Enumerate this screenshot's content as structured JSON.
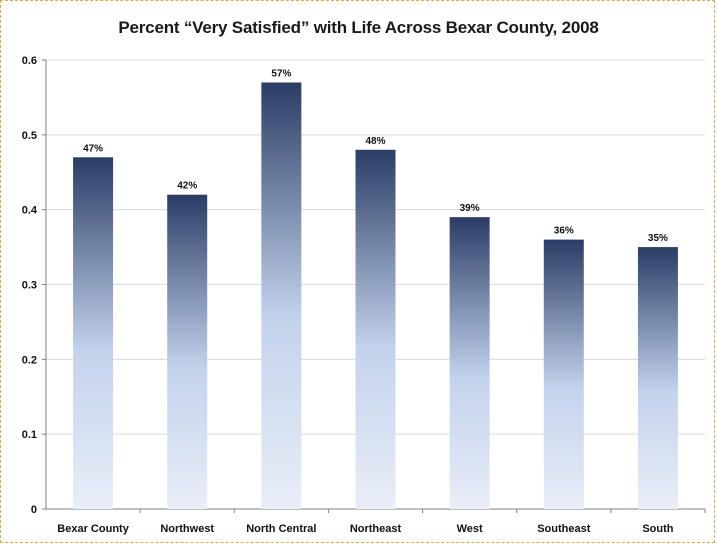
{
  "chart_data": {
    "type": "bar",
    "title": "Percent “Very Satisfied” with Life Across Bexar County, 2008",
    "xlabel": "",
    "ylabel": "",
    "categories": [
      "Bexar County",
      "Northwest",
      "North Central",
      "Northeast",
      "West",
      "Southeast",
      "South"
    ],
    "values": [
      0.47,
      0.42,
      0.57,
      0.48,
      0.39,
      0.36,
      0.35
    ],
    "data_labels": [
      "47%",
      "42%",
      "57%",
      "48%",
      "39%",
      "36%",
      "35%"
    ],
    "ylim": [
      0,
      0.6
    ],
    "yticks": [
      "0",
      "0.1",
      "0.2",
      "0.3",
      "0.4",
      "0.5",
      "0.6"
    ],
    "grid": true,
    "legend": "none",
    "colors": {
      "bar_top": "#2b3d66",
      "bar_mid": "#c3d2ec",
      "bar_bottom": "#e9eef8",
      "grid": "#d9d9d9",
      "axis": "#7f7f7f",
      "frame_border": "#d9a94a"
    }
  }
}
